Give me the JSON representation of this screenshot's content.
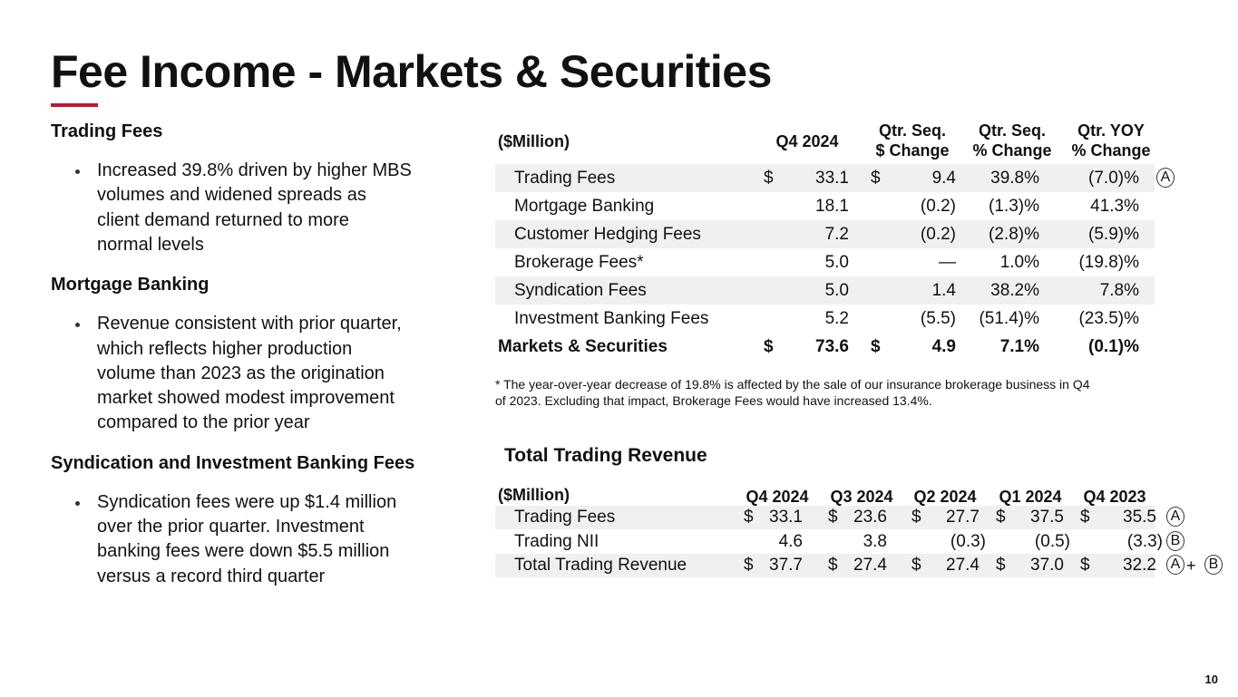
{
  "title": "Fee Income - Markets & Securities",
  "left": {
    "sections": [
      {
        "heading": "Trading Fees",
        "bullets": [
          [
            "Increased 39.8% driven by higher MBS",
            "volumes and widened spreads as",
            "client demand returned to more",
            "normal levels"
          ]
        ]
      },
      {
        "heading": "Mortgage Banking",
        "bullets": [
          [
            "Revenue consistent with prior quarter,",
            "which reflects higher production",
            "volume than 2023 as the origination",
            "market showed modest improvement",
            "compared to the prior year"
          ]
        ]
      },
      {
        "heading": "Syndication and Investment Banking Fees",
        "bullets": [
          [
            "Syndication fees were up $1.4 million",
            "over the prior quarter. Investment",
            "banking fees were down $5.5 million",
            "versus a record third quarter"
          ]
        ]
      }
    ]
  },
  "table1": {
    "header": [
      [
        "($Million)"
      ],
      [
        "Q4 2024"
      ],
      [
        "Qtr. Seq.",
        "$ Change"
      ],
      [
        "Qtr. Seq.",
        "% Change"
      ],
      [
        "Qtr. YOY",
        "% Change"
      ]
    ],
    "rows": [
      {
        "label": "Trading Fees",
        "currency": [
          "$",
          "$"
        ],
        "values": [
          "33.1",
          "9.4",
          "39.8%",
          "(7.0)%"
        ],
        "marker": [
          "A"
        ]
      },
      {
        "label": "Mortgage Banking",
        "values": [
          "18.1",
          "(0.2)",
          "(1.3)%",
          "41.3%"
        ]
      },
      {
        "label": "Customer Hedging Fees",
        "values": [
          "7.2",
          "(0.2)",
          "(2.8)%",
          "(5.9)%"
        ]
      },
      {
        "label": "Brokerage Fees*",
        "values": [
          "5.0",
          "—",
          "1.0%",
          "(19.8)%"
        ]
      },
      {
        "label": "Syndication Fees",
        "values": [
          "5.0",
          "1.4",
          "38.2%",
          "7.8%"
        ]
      },
      {
        "label": "Investment Banking Fees",
        "values": [
          "5.2",
          "(5.5)",
          "(51.4)%",
          "(23.5)%"
        ]
      },
      {
        "label": "Markets & Securities",
        "currency": [
          "$",
          "$"
        ],
        "values": [
          "73.6",
          "4.9",
          "7.1%",
          "(0.1)%"
        ]
      }
    ],
    "footnote": [
      "* The year-over-year decrease of 19.8% is affected by the sale of our insurance brokerage business in Q4",
      "of 2023.  Excluding that impact, Brokerage Fees would have increased 13.4%."
    ]
  },
  "table2": {
    "title": "Total Trading Revenue",
    "header": [
      "($Million)",
      "Q4 2024",
      "Q3 2024",
      "Q2 2024",
      "Q1 2024",
      "Q4 2023"
    ],
    "rows": [
      {
        "label": "Trading Fees",
        "currency": [
          "$",
          "$",
          "$",
          "$",
          "$"
        ],
        "values": [
          "33.1",
          "23.6",
          "27.7",
          "37.5",
          "35.5"
        ],
        "marker": [
          "A"
        ]
      },
      {
        "label": "Trading NII",
        "values": [
          "4.6",
          "3.8",
          "(0.3)",
          "(0.5)",
          "(3.3)"
        ],
        "marker": [
          "B"
        ]
      },
      {
        "label": "Total Trading Revenue",
        "currency": [
          "$",
          "$",
          "$",
          "$",
          "$"
        ],
        "values": [
          "37.7",
          "27.4",
          "27.4",
          "37.0",
          "32.2"
        ],
        "marker": [
          "A",
          "+",
          "B"
        ]
      }
    ]
  },
  "page_number": "10"
}
